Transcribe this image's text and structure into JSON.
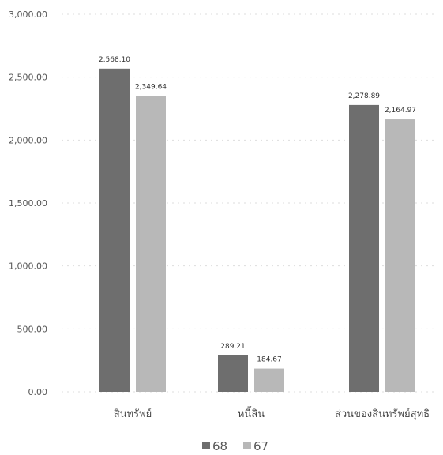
{
  "chart_data": {
    "type": "bar",
    "title": "",
    "xlabel": "",
    "ylabel": "",
    "categories": [
      "สินทรัพย์",
      "หนี้สิน",
      "ส่วนของสินทรัพย์สุทธิ"
    ],
    "series": [
      {
        "name": "68",
        "color": "#6e6e6e",
        "values": [
          2568.1,
          289.21,
          2278.89
        ],
        "labels": [
          "2,568.10",
          "289.21",
          "2,278.89"
        ]
      },
      {
        "name": "67",
        "color": "#b8b8b8",
        "values": [
          2349.64,
          184.67,
          2164.97
        ],
        "labels": [
          "2,349.64",
          "184.67",
          "2,164.97"
        ]
      }
    ],
    "ylim": [
      0,
      3000
    ],
    "yticks": [
      0,
      500,
      1000,
      1500,
      2000,
      2500,
      3000
    ],
    "ytick_labels": [
      "0.00",
      "500.00",
      "1,000.00",
      "1,500.00",
      "2,000.00",
      "2,500.00",
      "3,000.00"
    ],
    "grid": true,
    "legend_position": "bottom"
  }
}
